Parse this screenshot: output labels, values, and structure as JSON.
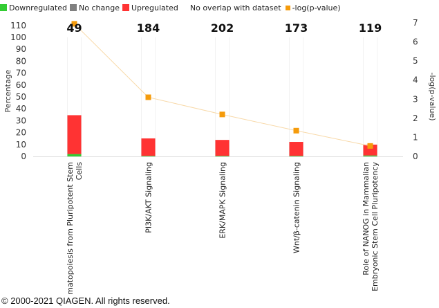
{
  "legend": {
    "downregulated": "Downregulated",
    "no_change": "No change",
    "upregulated": "Upregulated",
    "no_overlap": "No overlap with dataset",
    "neglogp": "-log(p-value)"
  },
  "colors": {
    "downregulated": "#33cc33",
    "no_change": "#808080",
    "upregulated": "#ff3333",
    "no_overlap": "#ffffff",
    "neglogp": "#f59b0b",
    "line": "#f8d9a8"
  },
  "chart_data": {
    "type": "bar",
    "categories": [
      [
        "Hematopoiesis from Pluripotent Stem",
        "Cells"
      ],
      [
        "PI3K/AKT Signaling"
      ],
      [
        "ERK/MAPK Signaling"
      ],
      [
        "Wnt/β-catenin Signaling"
      ],
      [
        "Role of NANOG in Mammalian",
        "Embryonic Stem Cell Pluripotency"
      ]
    ],
    "totals": [
      49,
      184,
      202,
      173,
      119
    ],
    "series": [
      {
        "name": "Downregulated",
        "values": [
          2,
          0.5,
          0.5,
          0.5,
          0.8
        ]
      },
      {
        "name": "No change",
        "values": [
          0,
          0,
          0,
          0,
          0
        ]
      },
      {
        "name": "Upregulated",
        "values": [
          32.7,
          14.7,
          13.4,
          11.7,
          9.2
        ]
      },
      {
        "name": "No overlap with dataset",
        "values": [
          65.3,
          84.8,
          86.1,
          87.8,
          90
        ]
      }
    ],
    "neglogp": [
      6.95,
      3.1,
      2.2,
      1.35,
      0.55
    ],
    "ylabel": "Percentage",
    "y2label": "-log(p-value)",
    "ylim": [
      0,
      110
    ],
    "yticks": [
      0,
      10,
      20,
      30,
      40,
      50,
      60,
      70,
      80,
      90,
      100,
      110
    ],
    "y2lim": [
      0,
      7
    ],
    "y2ticks": [
      0,
      1,
      2,
      3,
      4,
      5,
      6,
      7
    ]
  },
  "copyright": "© 2000-2021 QIAGEN. All rights reserved."
}
